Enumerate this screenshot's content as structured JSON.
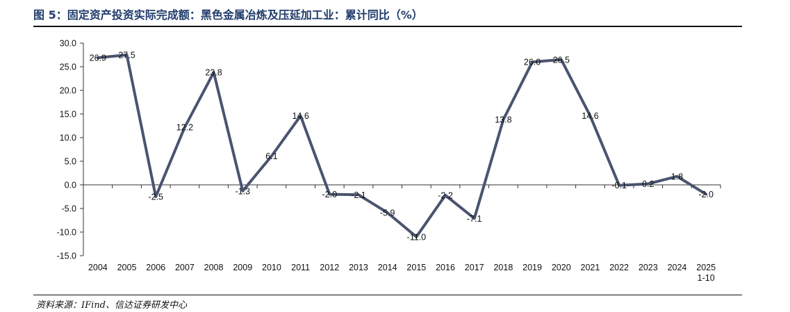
{
  "header": {
    "title": "图 5：固定资产投资实际完成额：黑色金属冶炼及压延加工业：累计同比（%）"
  },
  "footer": {
    "source": "资料来源：IFind、信达证券研发中心"
  },
  "colors": {
    "line": "#4a5470",
    "title": "#1f3a6b"
  },
  "chart_data": {
    "type": "line",
    "title": "固定资产投资实际完成额：黑色金属冶炼及压延加工业：累计同比（%）",
    "xlabel": "",
    "ylabel": "",
    "ylim": [
      -15.0,
      30.0
    ],
    "yticks": [
      "30.0",
      "25.0",
      "20.0",
      "15.0",
      "10.0",
      "5.0",
      "0.0",
      "-5.0",
      "-10.0",
      "-15.0"
    ],
    "categories": [
      "2004",
      "2005",
      "2006",
      "2007",
      "2008",
      "2009",
      "2010",
      "2011",
      "2012",
      "2013",
      "2014",
      "2015",
      "2016",
      "2017",
      "2018",
      "2019",
      "2020",
      "2021",
      "2022",
      "2023",
      "2024",
      "2025\n1-10"
    ],
    "series": [
      {
        "name": "累计同比",
        "values": [
          26.9,
          27.5,
          -2.5,
          12.2,
          23.8,
          -1.3,
          6.1,
          14.6,
          -2.0,
          -2.1,
          -5.9,
          -11.0,
          -2.2,
          -7.1,
          13.8,
          26.0,
          26.5,
          14.6,
          -0.1,
          0.2,
          1.8,
          -2.0
        ],
        "labels": [
          "26.9",
          "27.5",
          "-2.5",
          "12.2",
          "23.8",
          "-1.3",
          "6.1",
          "14.6",
          "-2.0",
          "-2.1",
          "-5.9",
          "-11.0",
          "-2.2",
          "-7.1",
          "13.8",
          "26.0",
          "26.5",
          "14.6",
          "-0.1",
          "0.2",
          "1.8",
          "-2.0"
        ]
      }
    ]
  }
}
